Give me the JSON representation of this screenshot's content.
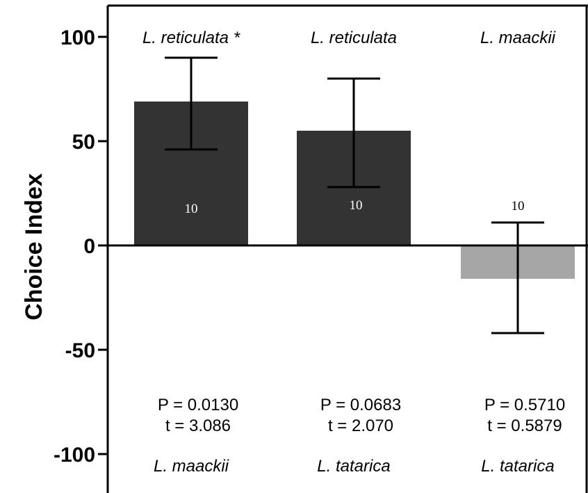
{
  "chart_data": {
    "type": "bar",
    "ylabel": "Choice Index",
    "ylim": [
      -100,
      100
    ],
    "yticks": [
      100,
      50,
      0,
      -50,
      -100
    ],
    "categories": [
      {
        "top": "L. reticulata *",
        "bottom": "L. maackii"
      },
      {
        "top": "L. reticulata",
        "bottom": "L. tatarica"
      },
      {
        "top": "L. maackii",
        "bottom": "L. tatarica"
      }
    ],
    "values": [
      69,
      55,
      -16
    ],
    "error_high": [
      90,
      80,
      11
    ],
    "error_low": [
      46,
      28,
      -42
    ],
    "n_labels": [
      "10",
      "10",
      "10"
    ],
    "stats": [
      {
        "p": "P = 0.0130",
        "t": "t = 3.086"
      },
      {
        "p": "P = 0.0683",
        "t": "t = 2.070"
      },
      {
        "p": "P = 0.5710",
        "t": "t = 0.5879"
      }
    ],
    "colors": [
      "#333333",
      "#333333",
      "#a6a6a6"
    ],
    "grid": false
  }
}
